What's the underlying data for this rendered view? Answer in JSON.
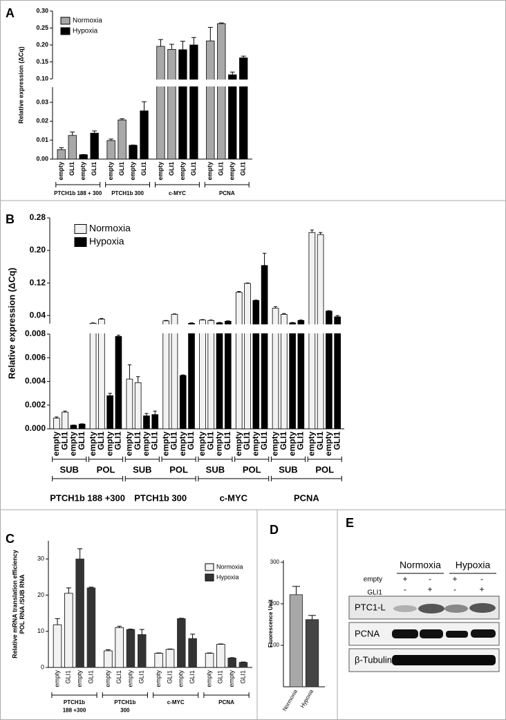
{
  "chart_data": [
    {
      "label": "A",
      "type": "bar",
      "ylabel": "Relative expression (ΔCq)",
      "legend": "upper left",
      "groups": [
        {
          "label": "PTCH1b 188 + 300",
          "categories": [
            "empty",
            "GLI1",
            "empty",
            "GLI1"
          ]
        },
        {
          "label": "PTCH1b 300",
          "categories": [
            "empty",
            "GLI1",
            "empty",
            "GLI1"
          ]
        },
        {
          "label": "c-MYC",
          "categories": [
            "empty",
            "GLI1",
            "empty",
            "GLI1"
          ]
        },
        {
          "label": "PCNA",
          "categories": [
            "empty",
            "GLI1",
            "empty",
            "GLI1"
          ]
        }
      ],
      "series": [
        {
          "name": "Normoxia",
          "color": "#a8a8a8",
          "edgecolor": "#000000",
          "values": [
            0.005,
            0.0125,
            null,
            null,
            0.0098,
            0.0207,
            null,
            null,
            0.196,
            0.187,
            null,
            null,
            0.212,
            0.263,
            null,
            null
          ],
          "errors": [
            0.001,
            0.0018,
            null,
            null,
            0.0008,
            0.0006,
            null,
            null,
            0.02,
            0.015,
            null,
            null,
            0.04,
            0.002,
            null,
            null
          ]
        },
        {
          "name": "Hypoxia",
          "color": "#000000",
          "edgecolor": "#000000",
          "values": [
            null,
            null,
            0.0023,
            0.0137,
            null,
            null,
            0.0073,
            0.0255,
            null,
            null,
            0.186,
            0.2,
            null,
            null,
            0.112,
            0.162
          ],
          "errors": [
            null,
            null,
            0.0001,
            0.0012,
            null,
            null,
            0.0001,
            0.0048,
            null,
            null,
            0.025,
            0.022,
            null,
            null,
            0.008,
            0.005
          ]
        }
      ],
      "segments": [
        {
          "ylim": [
            0,
            0.038
          ],
          "yticks": [
            {
              "value": 0,
              "label": "0.00"
            },
            {
              "value": 0.01,
              "label": "0.01"
            },
            {
              "value": 0.02,
              "label": "0.02"
            },
            {
              "value": 0.03,
              "label": "0.03"
            }
          ]
        },
        {
          "ylim": [
            0.1,
            0.3
          ],
          "yticks": [
            {
              "value": 0.1,
              "label": "0.10"
            },
            0.15,
            {
              "value": 0.2,
              "label": "0.20"
            },
            0.25,
            {
              "value": 0.3,
              "label": "0.30"
            }
          ]
        }
      ]
    },
    {
      "label": "B",
      "type": "bar",
      "ylabel": "Relative expression (ΔCq)",
      "legend": "upper left",
      "groups": [
        {
          "label": "PTCH1b 188 +300",
          "groups": [
            {
              "label": "SUB",
              "categories": [
                "empty",
                "GLI1",
                "empty",
                "GLI1"
              ]
            },
            {
              "label": "POL",
              "categories": [
                "empty",
                "GLI1",
                "empty",
                "GLI1"
              ]
            }
          ]
        },
        {
          "label": "PTCH1b 300",
          "groups": [
            {
              "label": "SUB",
              "categories": [
                "empty",
                "GLI1",
                "empty",
                "GLI1"
              ]
            },
            {
              "label": "POL",
              "categories": [
                "empty",
                "GLI1",
                "empty",
                "GLI1"
              ]
            }
          ]
        },
        {
          "label": "c-MYC",
          "groups": [
            {
              "label": "SUB",
              "categories": [
                "empty",
                "GLI1",
                "empty",
                "GLI1"
              ]
            },
            {
              "label": "POL",
              "categories": [
                "empty",
                "GLI1",
                "empty",
                "GLI1"
              ]
            }
          ]
        },
        {
          "label": "PCNA",
          "groups": [
            {
              "label": "SUB",
              "categories": [
                "empty",
                "GLI1",
                "empty",
                "GLI1"
              ]
            },
            {
              "label": "POL",
              "categories": [
                "empty",
                "GLI1",
                "empty",
                "GLI1"
              ]
            }
          ]
        }
      ],
      "series": [
        {
          "name": "Normoxia",
          "color": "#f2f2f2",
          "edgecolor": "#000000",
          "values": [
            0.0009,
            0.0014,
            null,
            null,
            0.021,
            0.031,
            null,
            null,
            0.0042,
            0.0039,
            null,
            null,
            0.027,
            0.043,
            null,
            null,
            0.029,
            0.028,
            null,
            null,
            0.097,
            0.119,
            null,
            null,
            0.058,
            0.043,
            null,
            null,
            0.244,
            0.239,
            null,
            null
          ],
          "errors": [
            0.0001,
            0.0001,
            null,
            null,
            0.001,
            0.002,
            null,
            null,
            0.0012,
            0.0005,
            null,
            null,
            0.001,
            0.001,
            null,
            null,
            0.001,
            0.001,
            null,
            null,
            0.002,
            0.001,
            null,
            null,
            0.004,
            0.002,
            null,
            null,
            0.006,
            0.005,
            null,
            null
          ]
        },
        {
          "name": "Hypoxia",
          "color": "#000000",
          "edgecolor": "#000000",
          "values": [
            null,
            null,
            0.0003,
            0.0004,
            null,
            null,
            0.0028,
            0.0078,
            null,
            null,
            0.0011,
            0.0012,
            null,
            null,
            0.0045,
            0.021,
            null,
            null,
            0.022,
            0.026,
            null,
            null,
            0.077,
            0.163,
            null,
            null,
            0.022,
            0.028,
            null,
            null,
            0.051,
            0.037
          ],
          "errors": [
            null,
            null,
            2e-05,
            2e-05,
            null,
            null,
            0.0002,
            0.0001,
            null,
            null,
            0.0002,
            0.0003,
            null,
            null,
            5e-05,
            0.001,
            null,
            null,
            0.001,
            0.001,
            null,
            null,
            0.001,
            0.03,
            null,
            null,
            0.001,
            0.001,
            null,
            null,
            0.001,
            0.003
          ]
        }
      ],
      "segments": [
        {
          "ylim": [
            0,
            0.008
          ],
          "yticks": [
            {
              "value": 0,
              "label": "0.000"
            },
            {
              "value": 0.002,
              "label": "0.002"
            },
            {
              "value": 0.004,
              "label": "0.004"
            },
            {
              "value": 0.006,
              "label": "0.006"
            },
            {
              "value": 0.008,
              "label": "0.008"
            }
          ]
        },
        {
          "ylim": [
            0.02,
            0.28
          ],
          "yticks": [
            0.04,
            0.12,
            {
              "value": 0.2,
              "label": "0.20"
            },
            0.28
          ]
        }
      ]
    },
    {
      "label": "C",
      "type": "bar",
      "ylabel": [
        "Relative mRNA translation efficiency",
        "POL RNA /SUB RNA"
      ],
      "legend": "upper right",
      "groups": [
        {
          "label": [
            "PTCH1b",
            "188 +300"
          ],
          "categories": [
            "empty",
            "GLI1",
            "empty",
            "GLI1"
          ]
        },
        {
          "label": [
            "PTCH1b",
            "300"
          ],
          "categories": [
            "empty",
            "GLI1",
            "empty",
            "GLI1"
          ]
        },
        {
          "label": "c-MYC",
          "categories": [
            "empty",
            "GLI1",
            "empty",
            "GLI1"
          ]
        },
        {
          "label": "PCNA",
          "categories": [
            "empty",
            "GLI1",
            "empty",
            "GLI1"
          ]
        }
      ],
      "series": [
        {
          "name": "Normoxia",
          "color": "#f2f2f2",
          "edgecolor": "#000000",
          "values": [
            11.8,
            20.5,
            null,
            null,
            4.6,
            11,
            null,
            null,
            3.9,
            5,
            null,
            null,
            3.9,
            6.4,
            null,
            null
          ],
          "errors": [
            1.7,
            1.5,
            null,
            null,
            0.3,
            0.4,
            null,
            null,
            0.1,
            0.1,
            null,
            null,
            0.1,
            0.1,
            null,
            null
          ]
        },
        {
          "name": "Hypoxia",
          "color": "#333333",
          "edgecolor": "#333333",
          "values": [
            null,
            null,
            30,
            22,
            null,
            null,
            10.5,
            9.1,
            null,
            null,
            13.5,
            8,
            null,
            null,
            2.6,
            1.4
          ],
          "errors": [
            null,
            null,
            2.8,
            0.2,
            null,
            null,
            0.1,
            1.4,
            null,
            null,
            0.1,
            1.2,
            null,
            null,
            0.1,
            0.1
          ]
        }
      ],
      "ylim": [
        0,
        35
      ],
      "yticks": [
        0,
        10,
        20,
        30
      ]
    },
    {
      "label": "D",
      "type": "bar",
      "ylabel": "Fluorescence Unit",
      "categories": [
        "Normoxia",
        "Hypoxia"
      ],
      "values": [
        222,
        162
      ],
      "errors": [
        20,
        10
      ],
      "colors": [
        "#a8a8a8",
        "#444444"
      ],
      "ylim": [
        0,
        305
      ],
      "yticks": [
        100,
        200,
        300
      ]
    }
  ],
  "panel_e": {
    "label": "E",
    "conditions": [
      "Normoxia",
      "Hypoxia"
    ],
    "rows": [
      {
        "label": "empty",
        "marks": [
          "+",
          "-",
          "+",
          "-"
        ]
      },
      {
        "label": "GLI1",
        "marks": [
          "-",
          "+",
          "-",
          "+"
        ]
      }
    ],
    "blots": [
      "PTC1-L",
      "PCNA",
      "β-Tubulin"
    ]
  }
}
